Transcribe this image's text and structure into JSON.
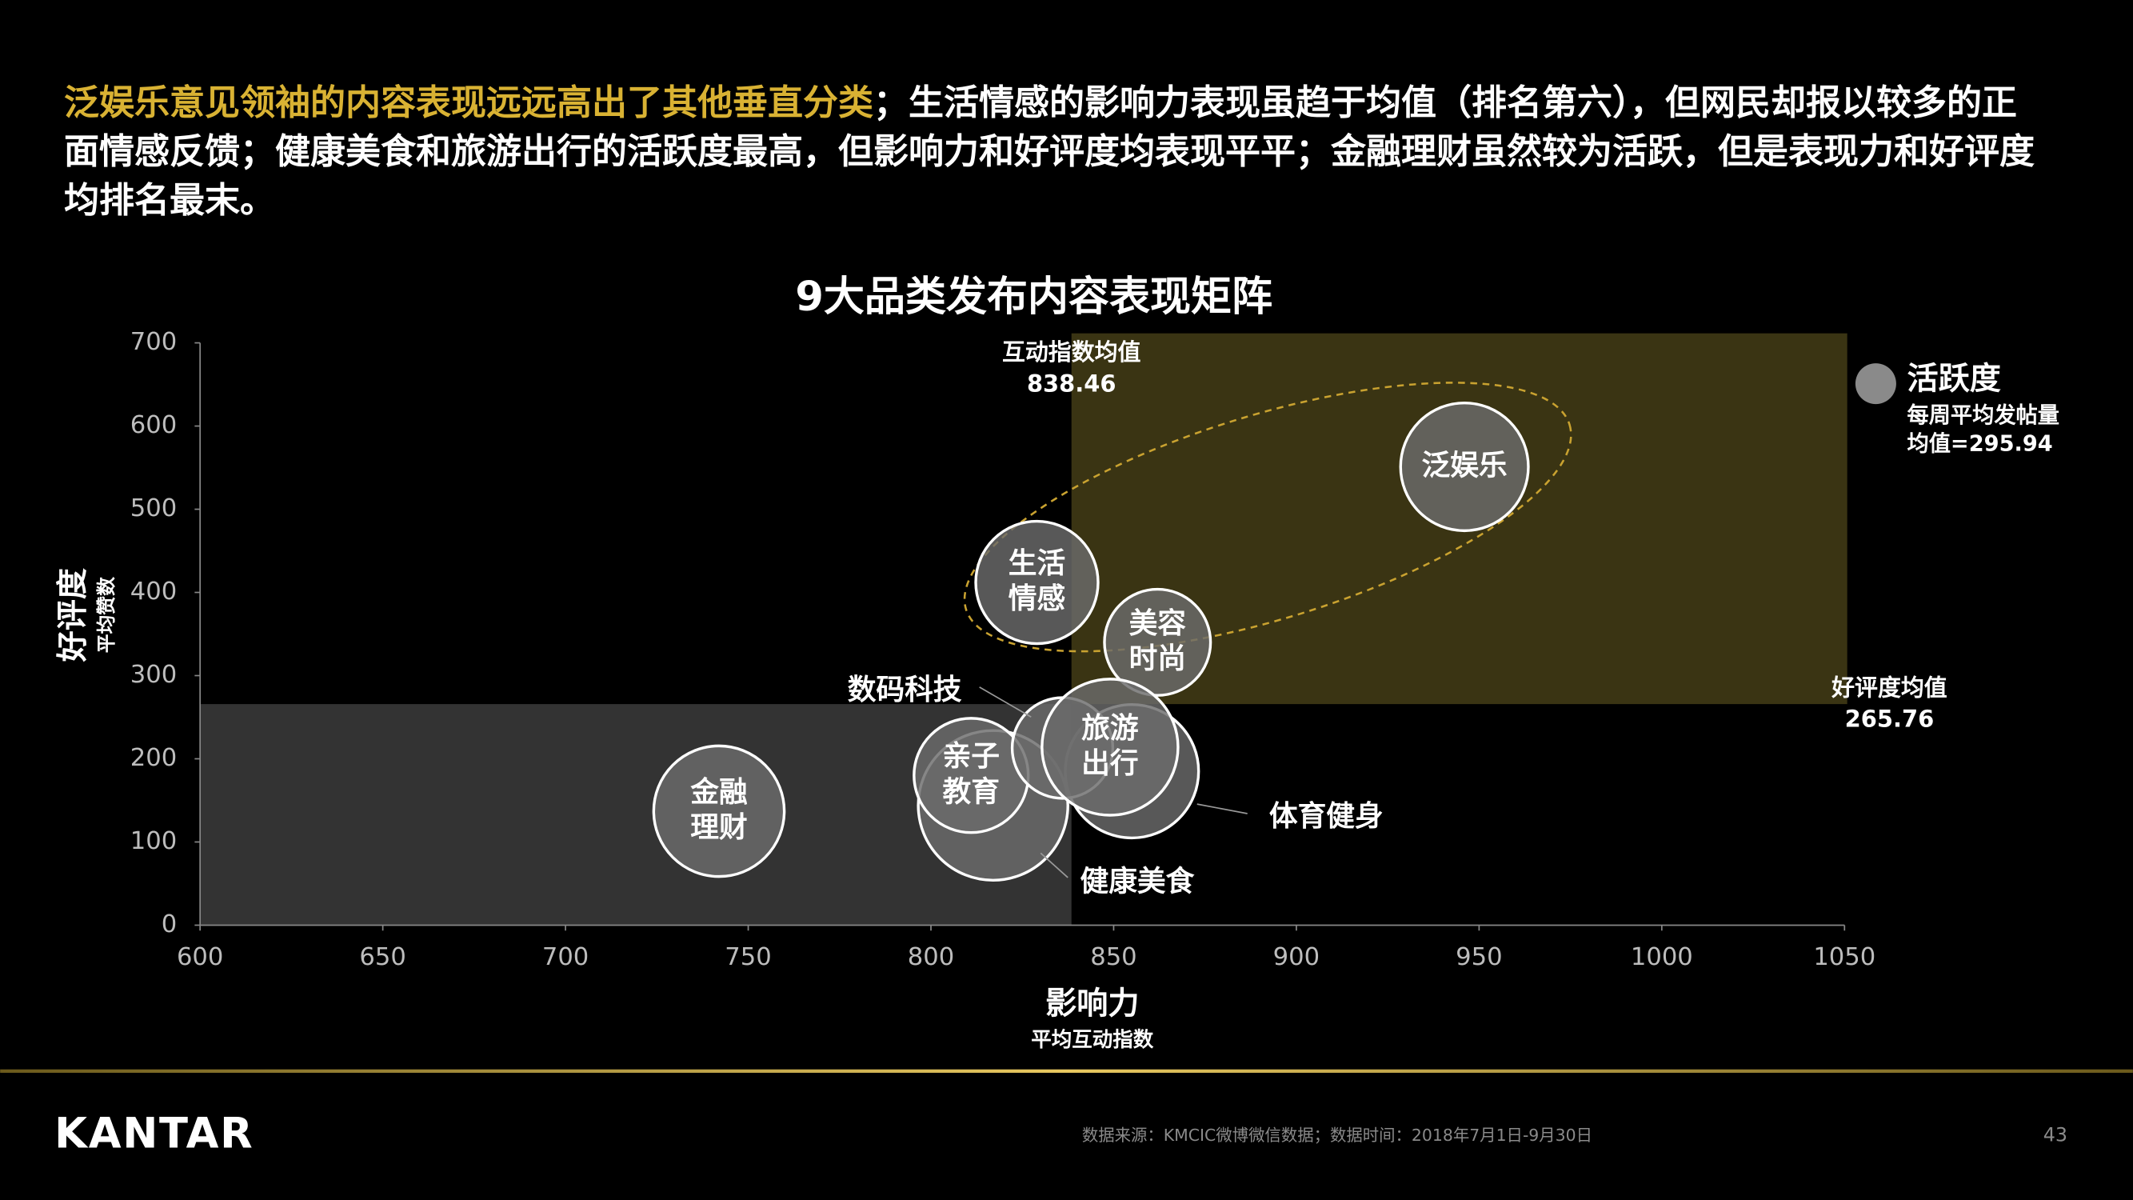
{
  "headline": {
    "highlight": "泛娱乐意见领袖的内容表现远远高出了其他垂直分类",
    "text": "；生活情感的影响力表现虽趋于均值（排名第六），但网民却报以较多的正面情感反馈；健康美食和旅游出行的活跃度最高，但影响力和好评度均表现平平；金融理财虽然较为活跃，但是表现力和好评度均排名最末。"
  },
  "chart_data": {
    "type": "bubble",
    "title": "9大品类发布内容表现矩阵",
    "x_label": "影响力",
    "x_sublabel": "平均互动指数",
    "y_label": "好评度",
    "y_sublabel": "平均赞数",
    "xlim": [
      600,
      1050
    ],
    "xticks": [
      600,
      650,
      700,
      750,
      800,
      850,
      900,
      950,
      1000,
      1050
    ],
    "ylim": [
      0,
      700
    ],
    "yticks": [
      0,
      100,
      200,
      300,
      400,
      500,
      600,
      700
    ],
    "x_mean": {
      "label": "互动指数均值",
      "value": 838.46
    },
    "y_mean": {
      "label": "好评度均值",
      "value": 265.76
    },
    "size_legend": {
      "title": "活跃度",
      "subtitle": "每周平均发帖量",
      "mean": {
        "value": 295.94,
        "label": "均值=295.94"
      }
    },
    "color": "#6b6b6b",
    "points": [
      {
        "name": "泛娱乐",
        "x": 946,
        "y": 551,
        "size": 2900
      },
      {
        "name": "生活情感",
        "x": 829,
        "y": 412,
        "size": 2660
      },
      {
        "name": "美容时尚",
        "x": 862,
        "y": 340,
        "size": 2000
      },
      {
        "name": "金融理财",
        "x": 742,
        "y": 137,
        "size": 3030
      },
      {
        "name": "健康美食",
        "x": 817,
        "y": 144,
        "size": 3980
      },
      {
        "name": "体育健身",
        "x": 855,
        "y": 185,
        "size": 3160
      },
      {
        "name": "亲子教育",
        "x": 811,
        "y": 180,
        "size": 2320
      },
      {
        "name": "数码科技",
        "x": 836,
        "y": 213,
        "size": 1800
      },
      {
        "name": "旅游出行",
        "x": 849,
        "y": 214,
        "size": 3290
      }
    ]
  },
  "footer": {
    "logo": "KANTAR",
    "source": "数据来源：KMCIC微博微信数据；数据时间：2018年7月1日-9月30日",
    "page": 43
  }
}
